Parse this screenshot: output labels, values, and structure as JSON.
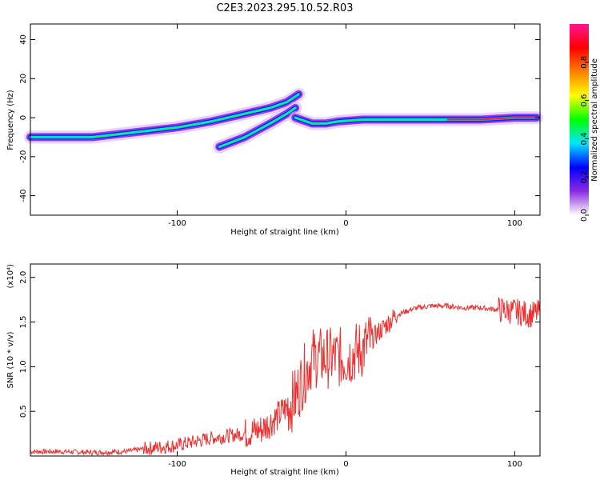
{
  "title": "C2E3.2023.295.10.52.R03",
  "colors": {
    "snr_line": "#ee3030",
    "axes": "#000000"
  },
  "chart_data": [
    {
      "type": "heatmap",
      "xlabel": "Height of straight line (km)",
      "ylabel": "Frequency (Hz)",
      "xlim": [
        -187,
        115
      ],
      "ylim": [
        -50,
        48
      ],
      "x_ticks": [
        -100,
        0,
        100
      ],
      "y_ticks": [
        -40,
        -20,
        0,
        20,
        40
      ],
      "colorbar": {
        "label": "Normalized spectral amplitude",
        "range": [
          0,
          1
        ],
        "ticks": [
          0.0,
          0.2,
          0.4,
          0.6,
          0.8
        ],
        "colormap": [
          "#ffffff",
          "#8a2be2",
          "#0000ff",
          "#00e5ff",
          "#00ff00",
          "#ffff00",
          "#ff8000",
          "#ff0000",
          "#ff1493"
        ]
      },
      "ridges": [
        {
          "name": "",
          "points": [
            [
              -187,
              -10
            ],
            [
              -150,
              -10
            ],
            [
              -120,
              -7
            ],
            [
              -100,
              -5
            ],
            [
              -80,
              -2
            ],
            [
              -60,
              2
            ],
            [
              -45,
              5
            ],
            [
              -35,
              8
            ],
            [
              -28,
              12
            ]
          ]
        },
        {
          "name": "",
          "points": [
            [
              -75,
              -15
            ],
            [
              -60,
              -10
            ],
            [
              -45,
              -3
            ],
            [
              -35,
              2
            ],
            [
              -30,
              5
            ]
          ]
        },
        {
          "name": "",
          "points": [
            [
              -30,
              0
            ],
            [
              -20,
              -3
            ],
            [
              -12,
              -3
            ],
            [
              -5,
              -2
            ],
            [
              10,
              -1
            ],
            [
              60,
              -1
            ],
            [
              80,
              -1
            ],
            [
              100,
              0
            ],
            [
              113,
              0
            ]
          ]
        }
      ]
    },
    {
      "type": "line",
      "xlabel": "Height of straight line (km)",
      "ylabel": "SNR (10 * v/v)",
      "y_multiplier": "(x10⁴)",
      "xlim": [
        -187,
        115
      ],
      "ylim": [
        0,
        2.15
      ],
      "x_ticks": [
        -100,
        0,
        100
      ],
      "y_ticks": [
        0.5,
        1.0,
        1.5,
        2.0
      ],
      "series": [
        {
          "name": "",
          "points": [
            [
              -187,
              0.05
            ],
            [
              -170,
              0.05
            ],
            [
              -150,
              0.04
            ],
            [
              -130,
              0.05
            ],
            [
              -120,
              0.08
            ],
            [
              -100,
              0.12
            ],
            [
              -80,
              0.2
            ],
            [
              -60,
              0.25
            ],
            [
              -50,
              0.3
            ],
            [
              -40,
              0.45
            ],
            [
              -30,
              0.65
            ],
            [
              -25,
              0.9
            ],
            [
              -20,
              1.1
            ],
            [
              -10,
              1.1
            ],
            [
              0,
              1.1
            ],
            [
              10,
              1.2
            ],
            [
              20,
              1.4
            ],
            [
              30,
              1.58
            ],
            [
              40,
              1.65
            ],
            [
              50,
              1.68
            ],
            [
              60,
              1.68
            ],
            [
              70,
              1.66
            ],
            [
              80,
              1.66
            ],
            [
              90,
              1.64
            ],
            [
              100,
              1.62
            ],
            [
              105,
              1.6
            ],
            [
              110,
              1.58
            ],
            [
              113,
              1.6
            ]
          ]
        }
      ]
    }
  ]
}
